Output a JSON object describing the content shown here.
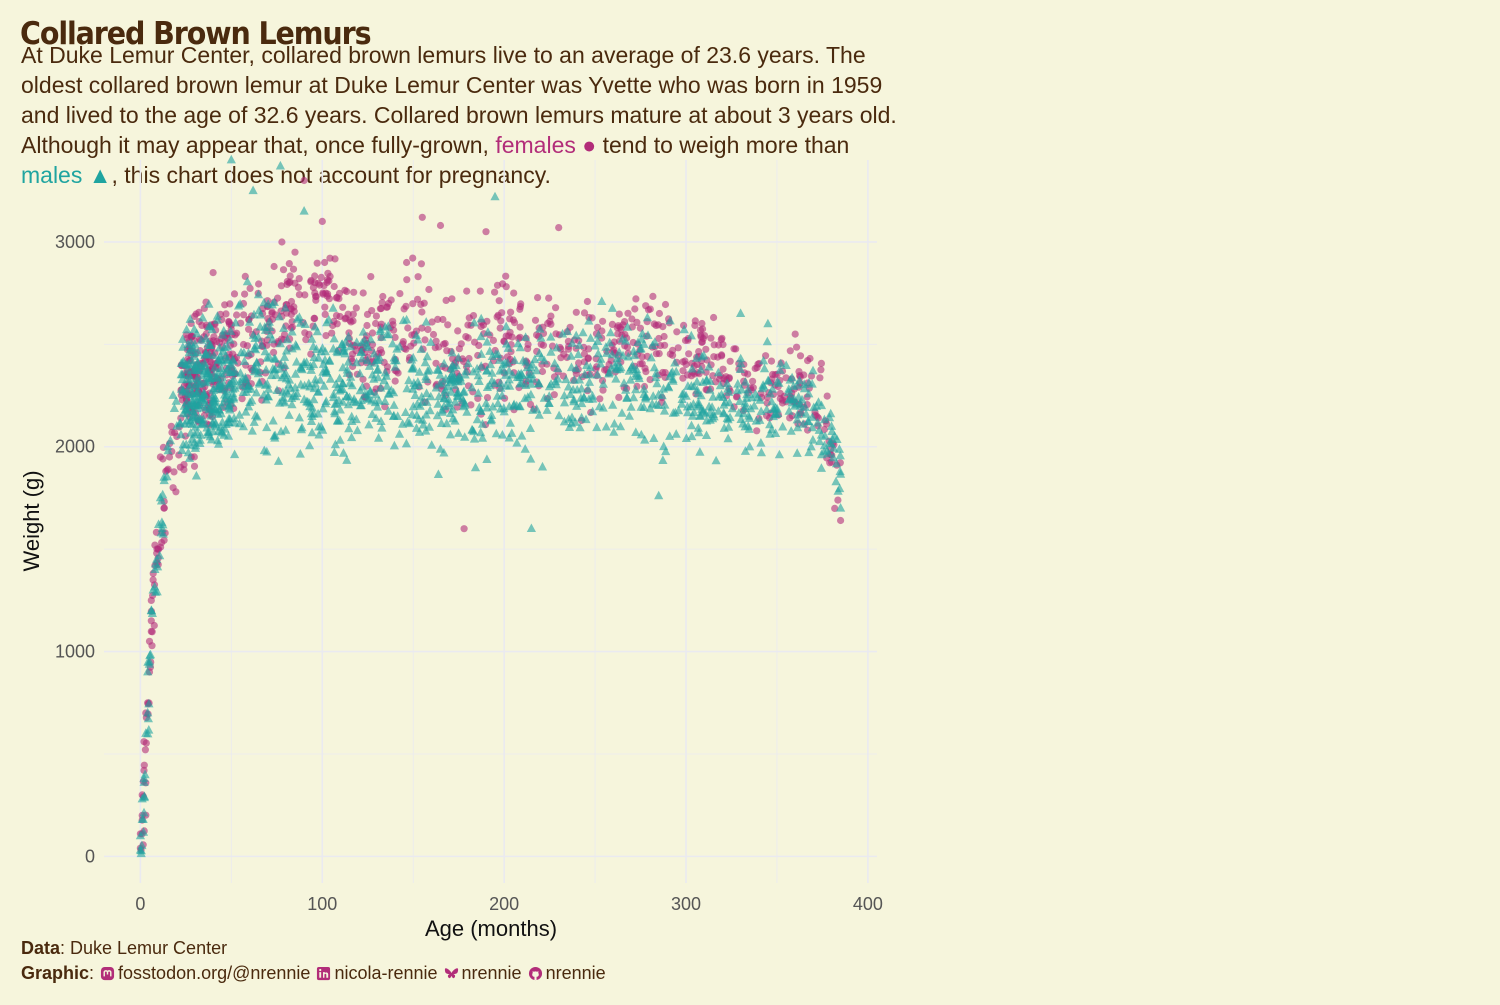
{
  "title": "Collared Brown Lemurs",
  "subtitle": {
    "part1": "At Duke Lemur Center, collared brown lemurs live to an average of 23.6 years. The oldest collared brown lemur at Duke Lemur Center was Yvette who was born in 1959 and lived to the age of 32.6 years. Collared brown lemurs mature at about 3 years old. Although it may appear that, once fully-grown,",
    "females_label": "females",
    "females_symbol": "●",
    "part2": "tend to weigh more than",
    "males_label": "males",
    "males_symbol": "▲",
    "part3": ", this chart does not account for pregnancy."
  },
  "caption": {
    "data_label": "Data",
    "data_value": ": Duke Lemur Center",
    "graphic_label": "Graphic",
    "sep": ":",
    "mastodon": "fosstodon.org/@nrennie",
    "linkedin": "nicola-rennie",
    "bluesky": "nrennie",
    "github": "nrennie"
  },
  "colors": {
    "background": "#F6F5DC",
    "females": "#B22D79",
    "males": "#1FA4A0",
    "text": "#4A2A0E"
  },
  "chart_data": {
    "type": "scatter",
    "xlabel": "Age (months)",
    "ylabel": "Weight (g)",
    "xlim": [
      -20,
      405
    ],
    "ylim": [
      -130,
      3400
    ],
    "xticks": [
      0,
      100,
      200,
      300,
      400
    ],
    "yticks": [
      0,
      1000,
      2000,
      3000
    ],
    "grid": true,
    "series": [
      {
        "name": "females",
        "marker": "circle",
        "growth": [
          [
            0,
            40
          ],
          [
            0,
            110
          ],
          [
            1,
            200
          ],
          [
            1,
            300
          ],
          [
            2,
            420
          ],
          [
            2,
            560
          ],
          [
            3,
            700
          ],
          [
            4,
            750
          ],
          [
            5,
            900
          ],
          [
            5,
            1050
          ],
          [
            6,
            1150
          ],
          [
            6,
            1250
          ],
          [
            7,
            1350
          ],
          [
            8,
            1420
          ],
          [
            8,
            1520
          ],
          [
            9,
            1480
          ],
          [
            10,
            1500
          ],
          [
            11,
            1950
          ],
          [
            12,
            1580
          ],
          [
            13,
            1700
          ],
          [
            14,
            1880
          ],
          [
            16,
            1950
          ],
          [
            17,
            2100
          ],
          [
            18,
            1800
          ],
          [
            20,
            2050
          ],
          [
            22,
            1900
          ],
          [
            25,
            2200
          ],
          [
            28,
            1950
          ]
        ],
        "adult_bands": [
          [
            30,
            2350,
            260
          ],
          [
            60,
            2500,
            300
          ],
          [
            90,
            2700,
            280
          ],
          [
            100,
            2820,
            180
          ],
          [
            120,
            2500,
            280
          ],
          [
            150,
            2550,
            320
          ],
          [
            175,
            2400,
            330
          ],
          [
            200,
            2500,
            300
          ],
          [
            220,
            2480,
            260
          ],
          [
            250,
            2450,
            250
          ],
          [
            280,
            2500,
            230
          ],
          [
            300,
            2480,
            220
          ],
          [
            320,
            2380,
            200
          ],
          [
            340,
            2300,
            200
          ],
          [
            360,
            2300,
            180
          ],
          [
            375,
            2200,
            180
          ],
          [
            385,
            1800,
            180
          ]
        ],
        "outliers": [
          [
            40,
            2850
          ],
          [
            85,
            2950
          ],
          [
            90,
            3300
          ],
          [
            100,
            3100
          ],
          [
            155,
            3120
          ],
          [
            165,
            3080
          ],
          [
            178,
            1600
          ],
          [
            190,
            3050
          ],
          [
            230,
            3070
          ],
          [
            360,
            2550
          ],
          [
            385,
            1640
          ]
        ]
      },
      {
        "name": "males",
        "marker": "triangle",
        "growth": [
          [
            0,
            30
          ],
          [
            0,
            100
          ],
          [
            1,
            180
          ],
          [
            1,
            280
          ],
          [
            2,
            380
          ],
          [
            3,
            600
          ],
          [
            4,
            700
          ],
          [
            4,
            900
          ],
          [
            5,
            950
          ],
          [
            6,
            1200
          ],
          [
            7,
            1300
          ],
          [
            8,
            1400
          ],
          [
            9,
            1450
          ],
          [
            10,
            1620
          ],
          [
            11,
            1750
          ],
          [
            12,
            1600
          ],
          [
            13,
            1850
          ],
          [
            15,
            2000
          ],
          [
            18,
            2250
          ],
          [
            20,
            2100
          ],
          [
            25,
            2400
          ],
          [
            30,
            2200
          ]
        ],
        "adult_bands": [
          [
            30,
            2250,
            330
          ],
          [
            60,
            2380,
            360
          ],
          [
            90,
            2320,
            330
          ],
          [
            120,
            2300,
            300
          ],
          [
            150,
            2300,
            280
          ],
          [
            170,
            2250,
            280
          ],
          [
            200,
            2300,
            300
          ],
          [
            230,
            2320,
            300
          ],
          [
            260,
            2350,
            330
          ],
          [
            280,
            2300,
            300
          ],
          [
            300,
            2250,
            250
          ],
          [
            330,
            2200,
            250
          ],
          [
            360,
            2230,
            220
          ],
          [
            380,
            2050,
            200
          ],
          [
            385,
            1850,
            150
          ]
        ],
        "outliers": [
          [
            50,
            3400
          ],
          [
            62,
            3250
          ],
          [
            77,
            3370
          ],
          [
            90,
            3150
          ],
          [
            195,
            3220
          ],
          [
            215,
            1600
          ],
          [
            285,
            1760
          ],
          [
            330,
            2650
          ],
          [
            345,
            2600
          ],
          [
            385,
            1700
          ]
        ]
      }
    ]
  }
}
